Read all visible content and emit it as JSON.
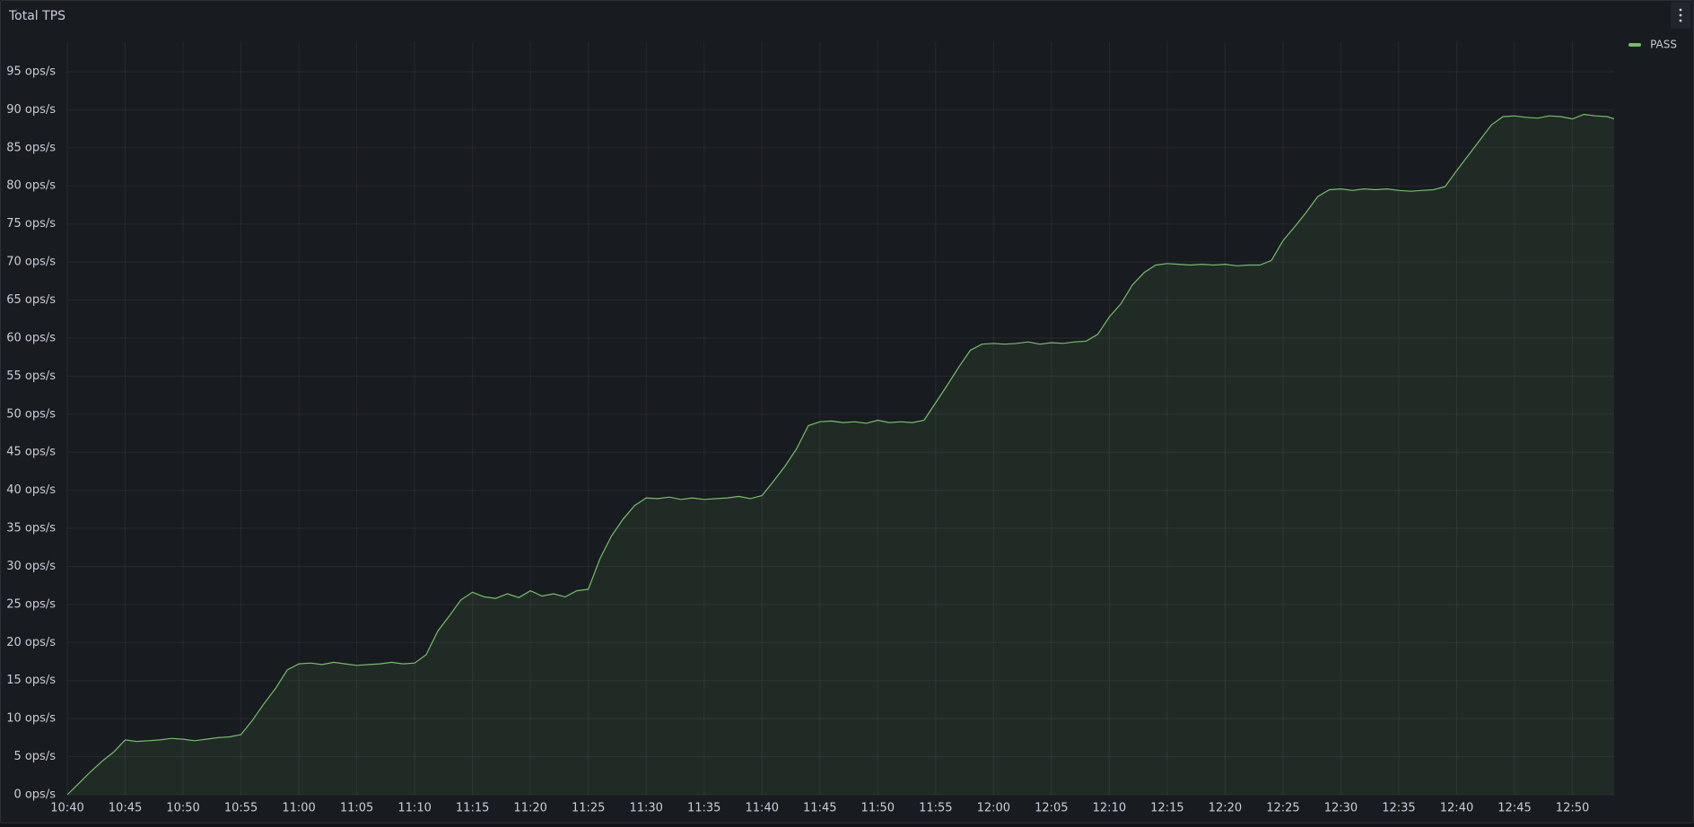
{
  "chart_data": {
    "type": "line",
    "title": "Total TPS",
    "x": [
      640,
      641,
      642,
      643,
      644,
      645,
      646,
      647,
      648,
      649,
      650,
      651,
      652,
      653,
      654,
      655,
      656,
      657,
      658,
      659,
      660,
      661,
      662,
      663,
      664,
      665,
      666,
      667,
      668,
      669,
      670,
      671,
      672,
      673,
      674,
      675,
      676,
      677,
      678,
      679,
      680,
      681,
      682,
      683,
      684,
      685,
      686,
      687,
      688,
      689,
      690,
      691,
      692,
      693,
      694,
      695,
      696,
      697,
      698,
      699,
      700,
      701,
      702,
      703,
      704,
      705,
      706,
      707,
      708,
      709,
      710,
      711,
      712,
      713,
      714,
      715,
      716,
      717,
      718,
      719,
      720,
      721,
      722,
      723,
      724,
      725,
      726,
      727,
      728,
      729,
      730,
      731,
      732,
      733,
      734,
      735,
      736,
      737,
      738,
      739,
      740,
      741,
      742,
      743,
      744,
      745,
      746,
      747,
      748,
      749,
      750,
      751,
      752,
      753,
      754,
      755,
      756,
      757,
      758,
      759,
      760,
      761,
      762,
      763,
      764,
      765,
      766,
      767,
      768,
      769,
      770,
      771,
      772,
      773,
      773.6
    ],
    "series": [
      {
        "name": "PASS",
        "color": "#73bf69",
        "values": [
          0,
          1.5,
          3,
          4.4,
          5.6,
          7.2,
          7,
          7.1,
          7.2,
          7.4,
          7.3,
          7.1,
          7.3,
          7.5,
          7.6,
          7.9,
          9.8,
          12,
          14,
          16.4,
          17.2,
          17.3,
          17.1,
          17.4,
          17.2,
          17,
          17.1,
          17.2,
          17.4,
          17.2,
          17.3,
          18.4,
          21.5,
          23.5,
          25.6,
          26.6,
          26,
          25.8,
          26.4,
          25.9,
          26.8,
          26.1,
          26.4,
          26,
          26.8,
          27,
          31,
          34,
          36.2,
          38,
          39,
          38.9,
          39.1,
          38.8,
          39,
          38.8,
          38.9,
          39,
          39.2,
          38.9,
          39.3,
          41.2,
          43.2,
          45.5,
          48.5,
          49,
          49.1,
          48.9,
          49,
          48.8,
          49.2,
          48.9,
          49,
          48.9,
          49.2,
          51.5,
          53.8,
          56.2,
          58.4,
          59.2,
          59.3,
          59.2,
          59.3,
          59.5,
          59.2,
          59.4,
          59.3,
          59.5,
          59.6,
          60.5,
          62.8,
          64.5,
          67,
          68.6,
          69.6,
          69.8,
          69.7,
          69.6,
          69.7,
          69.6,
          69.7,
          69.5,
          69.6,
          69.6,
          70.2,
          72.8,
          74.6,
          76.5,
          78.6,
          79.5,
          79.6,
          79.4,
          79.6,
          79.5,
          79.6,
          79.4,
          79.3,
          79.4,
          79.5,
          79.9,
          82,
          84,
          86,
          88,
          89.1,
          89.2,
          89,
          88.9,
          89.2,
          89.1,
          88.8,
          89.4,
          89.2,
          89.1,
          88.8
        ]
      }
    ],
    "xlim": [
      640,
      773.6
    ],
    "xticks": [
      {
        "value": 640,
        "label": "10:40"
      },
      {
        "value": 645,
        "label": "10:45"
      },
      {
        "value": 650,
        "label": "10:50"
      },
      {
        "value": 655,
        "label": "10:55"
      },
      {
        "value": 660,
        "label": "11:00"
      },
      {
        "value": 665,
        "label": "11:05"
      },
      {
        "value": 670,
        "label": "11:10"
      },
      {
        "value": 675,
        "label": "11:15"
      },
      {
        "value": 680,
        "label": "11:20"
      },
      {
        "value": 685,
        "label": "11:25"
      },
      {
        "value": 690,
        "label": "11:30"
      },
      {
        "value": 695,
        "label": "11:35"
      },
      {
        "value": 700,
        "label": "11:40"
      },
      {
        "value": 705,
        "label": "11:45"
      },
      {
        "value": 710,
        "label": "11:50"
      },
      {
        "value": 715,
        "label": "11:55"
      },
      {
        "value": 720,
        "label": "12:00"
      },
      {
        "value": 725,
        "label": "12:05"
      },
      {
        "value": 730,
        "label": "12:10"
      },
      {
        "value": 735,
        "label": "12:15"
      },
      {
        "value": 740,
        "label": "12:20"
      },
      {
        "value": 745,
        "label": "12:25"
      },
      {
        "value": 750,
        "label": "12:30"
      },
      {
        "value": 755,
        "label": "12:35"
      },
      {
        "value": 760,
        "label": "12:40"
      },
      {
        "value": 765,
        "label": "12:45"
      },
      {
        "value": 770,
        "label": "12:50"
      }
    ],
    "ylim": [
      0,
      99
    ],
    "yticks": [
      {
        "value": 0,
        "label": "0 ops/s"
      },
      {
        "value": 5,
        "label": "5 ops/s"
      },
      {
        "value": 10,
        "label": "10 ops/s"
      },
      {
        "value": 15,
        "label": "15 ops/s"
      },
      {
        "value": 20,
        "label": "20 ops/s"
      },
      {
        "value": 25,
        "label": "25 ops/s"
      },
      {
        "value": 30,
        "label": "30 ops/s"
      },
      {
        "value": 35,
        "label": "35 ops/s"
      },
      {
        "value": 40,
        "label": "40 ops/s"
      },
      {
        "value": 45,
        "label": "45 ops/s"
      },
      {
        "value": 50,
        "label": "50 ops/s"
      },
      {
        "value": 55,
        "label": "55 ops/s"
      },
      {
        "value": 60,
        "label": "60 ops/s"
      },
      {
        "value": 65,
        "label": "65 ops/s"
      },
      {
        "value": 70,
        "label": "70 ops/s"
      },
      {
        "value": 75,
        "label": "75 ops/s"
      },
      {
        "value": 80,
        "label": "80 ops/s"
      },
      {
        "value": 85,
        "label": "85 ops/s"
      },
      {
        "value": 90,
        "label": "90 ops/s"
      },
      {
        "value": 95,
        "label": "95 ops/s"
      }
    ],
    "grid": true,
    "legend": "top-right"
  }
}
